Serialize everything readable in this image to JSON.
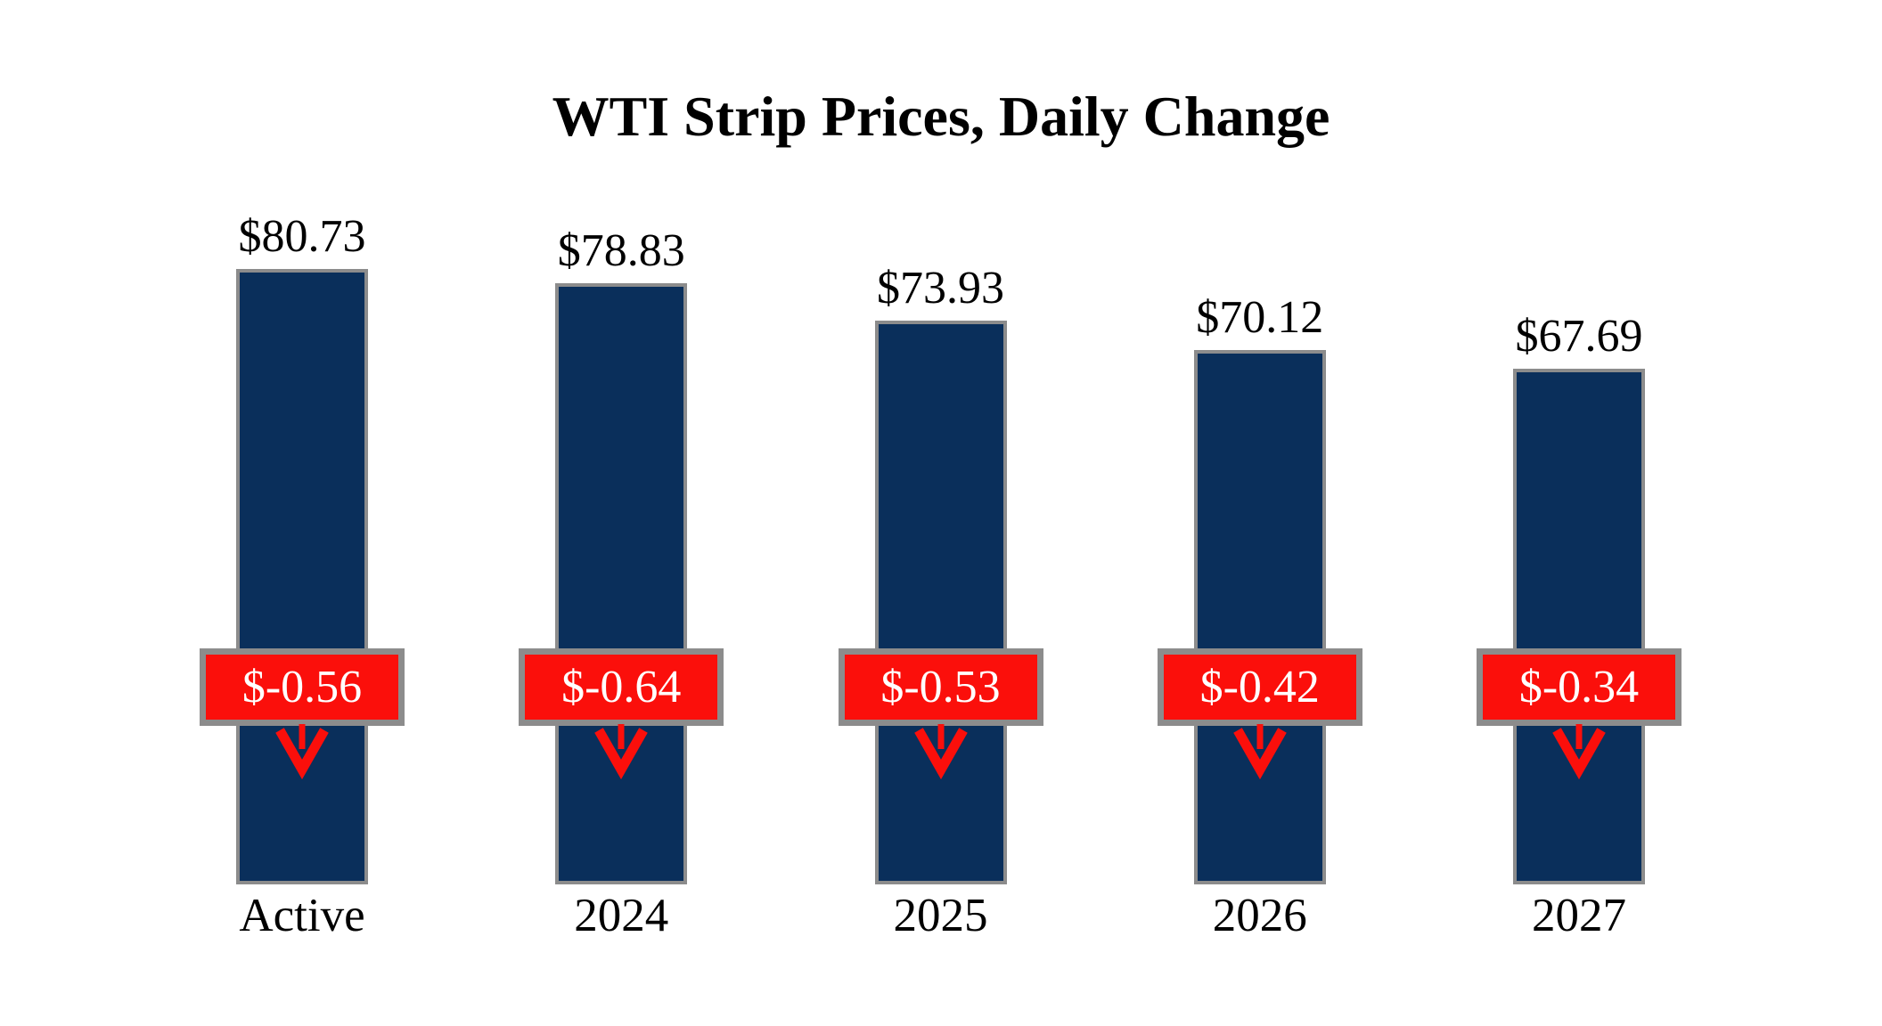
{
  "title": "WTI Strip Prices, Daily Change",
  "colors": {
    "background": "#FFFFFF",
    "bar_fill": "#0A2F5B",
    "bar_border": "#8C8C8C",
    "badge_fill": "#FB0F0B",
    "badge_border": "#8C8C8C",
    "badge_text": "#FFFFFF",
    "arrow": "#FB0F0B",
    "text": "#000000"
  },
  "chart_data": {
    "type": "bar",
    "title": "WTI Strip Prices, Daily Change",
    "categories": [
      "Active",
      "2024",
      "2025",
      "2026",
      "2027"
    ],
    "series": [
      {
        "name": "Strip Price",
        "values": [
          80.73,
          78.83,
          73.93,
          70.12,
          67.69
        ],
        "labels": [
          "$80.73",
          "$78.83",
          "$73.93",
          "$70.12",
          "$67.69"
        ]
      },
      {
        "name": "Daily Change",
        "values": [
          -0.56,
          -0.64,
          -0.53,
          -0.42,
          -0.34
        ],
        "labels": [
          "$-0.56",
          "$-0.64",
          "$-0.53",
          "$-0.42",
          "$-0.34"
        ]
      }
    ],
    "ylim": [
      0,
      84
    ],
    "grid": false,
    "legend": "none",
    "annotations": "red change badge with down arrow centered on each bar"
  }
}
